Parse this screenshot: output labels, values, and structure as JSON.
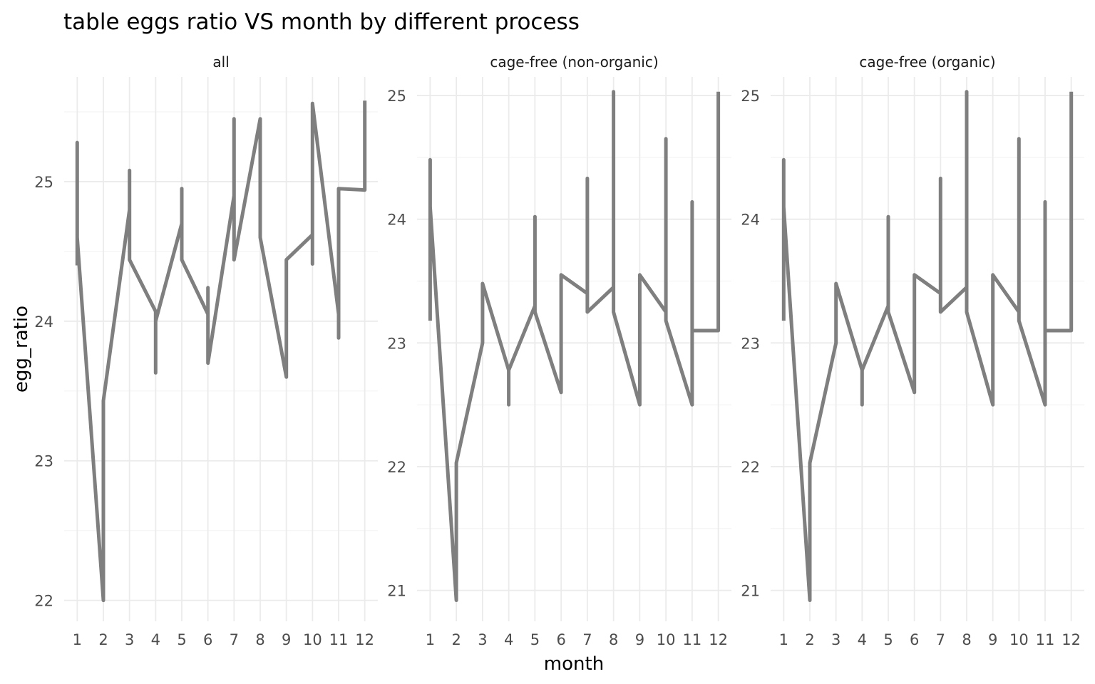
{
  "chart_data": {
    "type": "line",
    "title": "table eggs ratio VS month by different process",
    "xlabel": "month",
    "ylabel": "egg_ratio",
    "x_ticks": [
      1,
      2,
      3,
      4,
      5,
      6,
      7,
      8,
      9,
      10,
      11,
      12
    ],
    "grid": true,
    "facets": [
      {
        "name": "all",
        "ylim": [
          21.85,
          25.75
        ],
        "y_ticks": [
          22,
          23,
          24,
          25
        ],
        "series": [
          {
            "x": [
              1,
              1,
              1,
              2,
              2,
              3,
              3,
              3,
              4,
              4,
              4,
              5,
              5,
              5,
              6,
              6,
              6,
              7,
              7,
              7,
              8,
              8,
              8,
              9,
              9,
              9,
              10,
              10,
              10,
              11,
              11,
              11,
              12,
              12
            ],
            "y": [
              24.4,
              25.28,
              24.6,
              22.0,
              23.43,
              24.8,
              25.08,
              24.44,
              24.07,
              23.63,
              24.0,
              24.7,
              24.95,
              24.44,
              24.05,
              24.24,
              23.7,
              24.9,
              25.45,
              24.44,
              25.45,
              24.6,
              24.6,
              23.6,
              24.44,
              24.44,
              24.62,
              24.41,
              25.56,
              24.05,
              23.88,
              24.95,
              24.94,
              25.58
            ]
          }
        ]
      },
      {
        "name": "cage-free (non-organic)",
        "ylim": [
          20.75,
          25.15
        ],
        "y_ticks": [
          21,
          22,
          23,
          24,
          25
        ],
        "series": [
          {
            "x": [
              1,
              1,
              1,
              2,
              2,
              3,
              3,
              4,
              4,
              4,
              5,
              5,
              5,
              6,
              6,
              6,
              7,
              7,
              7,
              8,
              8,
              8,
              9,
              9,
              9,
              10,
              10,
              10,
              11,
              11,
              11,
              12,
              12
            ],
            "y": [
              23.18,
              24.48,
              24.1,
              20.92,
              22.03,
              23.0,
              23.48,
              22.78,
              22.5,
              22.78,
              23.3,
              24.02,
              23.25,
              22.6,
              23.55,
              23.55,
              23.4,
              24.33,
              23.25,
              23.45,
              25.03,
              23.25,
              22.5,
              23.55,
              23.55,
              23.25,
              24.65,
              23.18,
              22.5,
              24.14,
              23.1,
              23.1,
              25.03
            ]
          }
        ]
      },
      {
        "name": "cage-free (organic)",
        "ylim": [
          20.75,
          25.15
        ],
        "y_ticks": [
          21,
          22,
          23,
          24,
          25
        ],
        "series": [
          {
            "x": [
              1,
              1,
              1,
              2,
              2,
              3,
              3,
              4,
              4,
              4,
              5,
              5,
              5,
              6,
              6,
              6,
              7,
              7,
              7,
              8,
              8,
              8,
              9,
              9,
              9,
              10,
              10,
              10,
              11,
              11,
              11,
              12,
              12
            ],
            "y": [
              23.18,
              24.48,
              24.1,
              20.92,
              22.03,
              23.0,
              23.48,
              22.78,
              22.5,
              22.78,
              23.3,
              24.02,
              23.25,
              22.6,
              23.55,
              23.55,
              23.4,
              24.33,
              23.25,
              23.45,
              25.03,
              23.25,
              22.5,
              23.55,
              23.55,
              23.25,
              24.65,
              23.18,
              22.5,
              24.14,
              23.1,
              23.1,
              25.03
            ]
          }
        ]
      }
    ]
  }
}
